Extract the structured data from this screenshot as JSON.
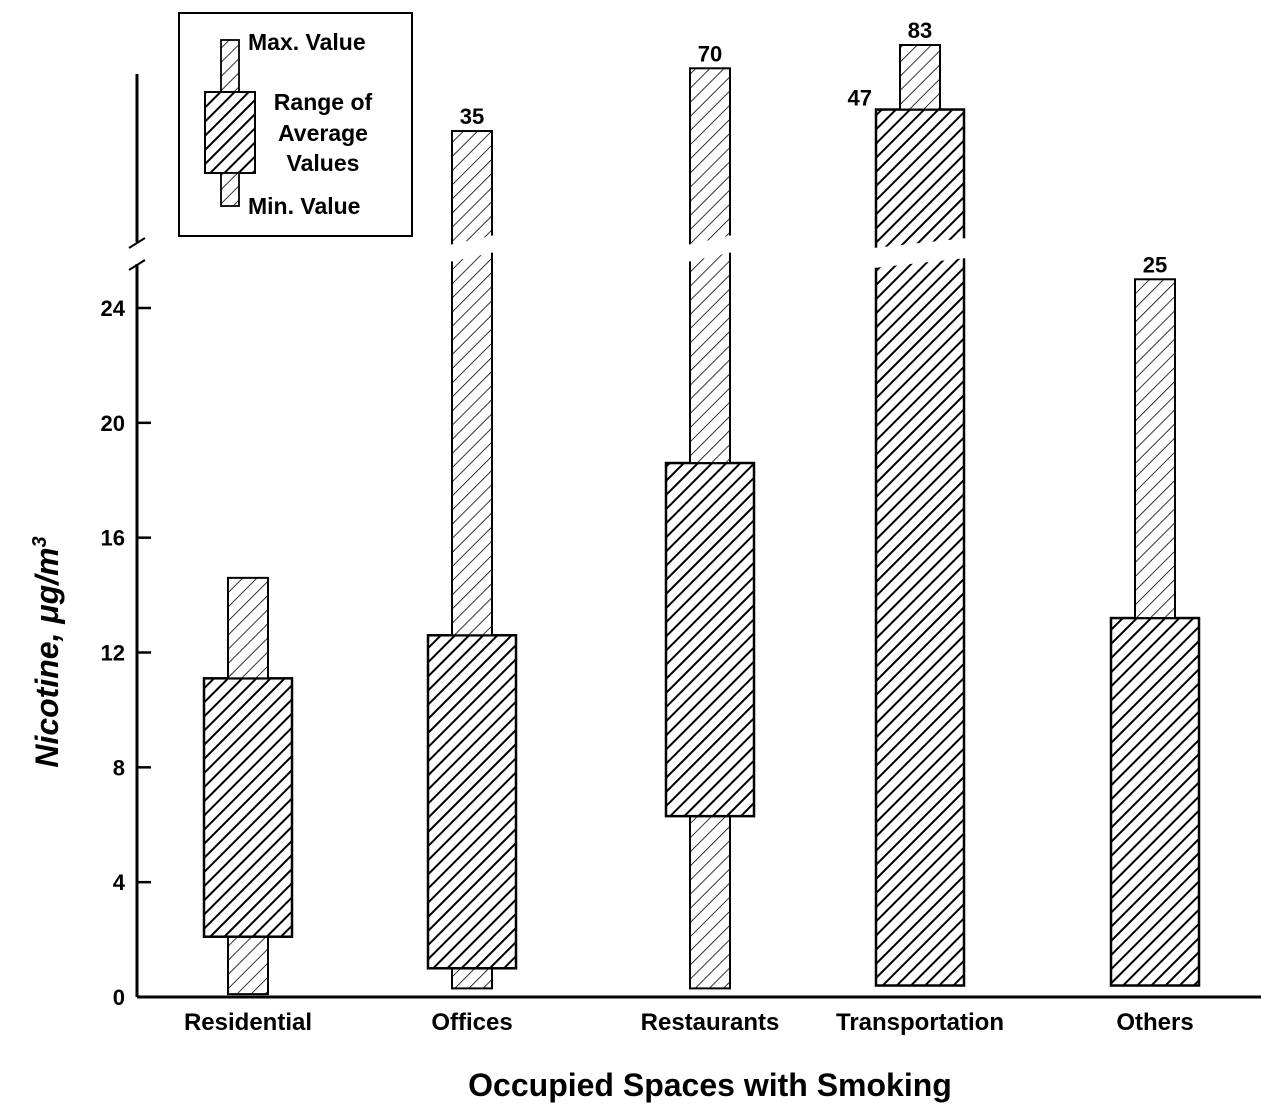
{
  "chart_data": {
    "type": "range-bar",
    "xlabel": "Occupied Spaces with Smoking",
    "ylabel": "Nicotine, μg/m",
    "ylabel_superscript": "3",
    "y_ticks": [
      "0",
      "4",
      "8",
      "12",
      "16",
      "20",
      "24"
    ],
    "ylim": [
      0,
      25
    ],
    "axis_break": true,
    "legend": {
      "max_label": "Max. Value",
      "range_label_lines": [
        "Range of",
        "Average",
        "Values"
      ],
      "min_label": "Min. Value"
    },
    "categories": [
      {
        "name": "Residential",
        "min": 0.1,
        "avg_low": 2.1,
        "avg_high": 11.1,
        "max": 14.6,
        "max_label": ""
      },
      {
        "name": "Offices",
        "min": 0.3,
        "avg_low": 1.0,
        "avg_high": 12.6,
        "max": 35,
        "max_label": "35"
      },
      {
        "name": "Restaurants",
        "min": 0.3,
        "avg_low": 6.3,
        "avg_high": 18.6,
        "max": 70,
        "max_label": "70"
      },
      {
        "name": "Transportation",
        "min": 0.4,
        "avg_low": 0.4,
        "avg_high": 47,
        "max": 83,
        "max_label": "83",
        "avg_high_label": "47"
      },
      {
        "name": "Others",
        "min": 0.4,
        "avg_low": 0.4,
        "avg_high": 13.2,
        "max": 25,
        "max_label": "25"
      }
    ],
    "colors": {
      "stroke": "#000000",
      "background": "#ffffff"
    }
  }
}
